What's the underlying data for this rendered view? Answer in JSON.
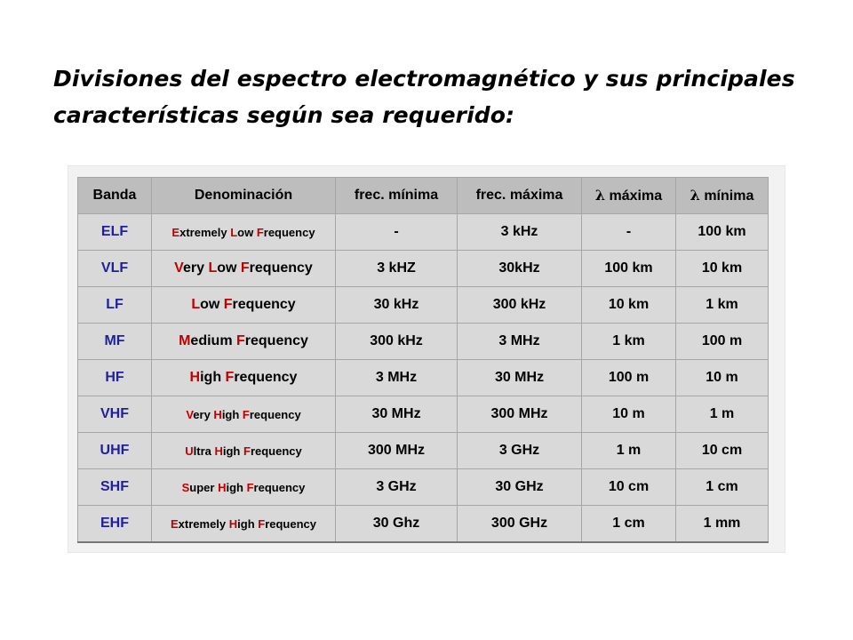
{
  "title": "Divisiones del espectro electromagnético y sus principales características según sea requerido:",
  "colors": {
    "band_text": "#1f1fa0",
    "initial_letters": "#c00000",
    "header_background": "#bdbdbd",
    "cell_background": "#d9d9d9",
    "frame_background": "#f2f2f2"
  },
  "table": {
    "headers": {
      "band": "Banda",
      "name": "Denominación",
      "fmin": "frec. mínima",
      "fmax": "frec. máxima",
      "lambda_symbol": "λ",
      "lmax": "máxima",
      "lmin": "mínima"
    },
    "rows": [
      {
        "band": "ELF",
        "name": [
          {
            "t": "E",
            "h": true
          },
          {
            "t": "xtremely ",
            "h": false
          },
          {
            "t": "L",
            "h": true
          },
          {
            "t": "ow ",
            "h": false
          },
          {
            "t": "F",
            "h": true
          },
          {
            "t": "requency",
            "h": false
          }
        ],
        "fmin": "-",
        "fmax": "3 kHz",
        "lmax": "-",
        "lmin": "100 km",
        "small": true
      },
      {
        "band": "VLF",
        "name": [
          {
            "t": "V",
            "h": true
          },
          {
            "t": "ery ",
            "h": false
          },
          {
            "t": "L",
            "h": true
          },
          {
            "t": "ow ",
            "h": false
          },
          {
            "t": "F",
            "h": true
          },
          {
            "t": "requency",
            "h": false
          }
        ],
        "fmin": "3 kHZ",
        "fmax": "30kHz",
        "lmax": "100 km",
        "lmin": "10 km",
        "small": false
      },
      {
        "band": "LF",
        "name": [
          {
            "t": "L",
            "h": true
          },
          {
            "t": "ow ",
            "h": false
          },
          {
            "t": "F",
            "h": true
          },
          {
            "t": "requency",
            "h": false
          }
        ],
        "fmin": "30 kHz",
        "fmax": "300 kHz",
        "lmax": "10 km",
        "lmin": "1 km",
        "small": false
      },
      {
        "band": "MF",
        "name": [
          {
            "t": "M",
            "h": true
          },
          {
            "t": "edium ",
            "h": false
          },
          {
            "t": "F",
            "h": true
          },
          {
            "t": "requency",
            "h": false
          }
        ],
        "fmin": "300 kHz",
        "fmax": "3 MHz",
        "lmax": "1 km",
        "lmin": "100 m",
        "small": false
      },
      {
        "band": "HF",
        "name": [
          {
            "t": "H",
            "h": true
          },
          {
            "t": "igh ",
            "h": false
          },
          {
            "t": "F",
            "h": true
          },
          {
            "t": "requency",
            "h": false
          }
        ],
        "fmin": "3 MHz",
        "fmax": "30 MHz",
        "lmax": "100 m",
        "lmin": "10 m",
        "small": false
      },
      {
        "band": "VHF",
        "name": [
          {
            "t": "V",
            "h": true
          },
          {
            "t": "ery ",
            "h": false
          },
          {
            "t": "H",
            "h": true
          },
          {
            "t": "igh ",
            "h": false
          },
          {
            "t": "F",
            "h": true
          },
          {
            "t": "requency",
            "h": false
          }
        ],
        "fmin": "30 MHz",
        "fmax": "300 MHz",
        "lmax": "10 m",
        "lmin": "1 m",
        "small": true
      },
      {
        "band": "UHF",
        "name": [
          {
            "t": "U",
            "h": true
          },
          {
            "t": "ltra ",
            "h": false
          },
          {
            "t": "H",
            "h": true
          },
          {
            "t": "igh ",
            "h": false
          },
          {
            "t": "F",
            "h": true
          },
          {
            "t": "requency",
            "h": false
          }
        ],
        "fmin": "300 MHz",
        "fmax": "3 GHz",
        "lmax": "1 m",
        "lmin": "10 cm",
        "small": true
      },
      {
        "band": "SHF",
        "name": [
          {
            "t": "S",
            "h": true
          },
          {
            "t": "uper ",
            "h": false
          },
          {
            "t": "H",
            "h": true
          },
          {
            "t": "igh ",
            "h": false
          },
          {
            "t": "F",
            "h": true
          },
          {
            "t": "requency",
            "h": false
          }
        ],
        "fmin": "3 GHz",
        "fmax": "30 GHz",
        "lmax": "10 cm",
        "lmin": "1 cm",
        "small": true
      },
      {
        "band": "EHF",
        "name": [
          {
            "t": "E",
            "h": true
          },
          {
            "t": "xtremely ",
            "h": false
          },
          {
            "t": "H",
            "h": true
          },
          {
            "t": "igh ",
            "h": false
          },
          {
            "t": "F",
            "h": true
          },
          {
            "t": "requency",
            "h": false
          }
        ],
        "fmin": "30 Ghz",
        "fmax": "300 GHz",
        "lmax": "1 cm",
        "lmin": "1 mm",
        "small": true
      }
    ]
  }
}
